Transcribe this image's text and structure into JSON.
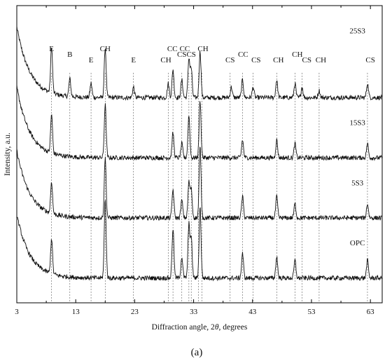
{
  "chart_data": {
    "type": "line",
    "title": "",
    "xlabel_prefix": "Diffraction angle, 2",
    "xlabel_symbol": "θ",
    "xlabel_suffix": ", degrees",
    "ylabel": "Intensity, a.u.",
    "panel_label": "(a)",
    "xlim": [
      3,
      65
    ],
    "x_ticks": [
      3,
      13,
      23,
      33,
      43,
      53,
      63
    ],
    "x_minor_step": 5,
    "grid": false,
    "series": [
      {
        "name": "25S3",
        "baseline": 5.3,
        "rise": 2.0,
        "decay": 2.2,
        "peaks": [
          [
            8.9,
            1.3
          ],
          [
            12.0,
            0.5
          ],
          [
            15.6,
            0.4
          ],
          [
            18.0,
            1.4
          ],
          [
            22.8,
            0.3
          ],
          [
            28.7,
            0.4
          ],
          [
            29.5,
            0.8
          ],
          [
            31.0,
            0.5
          ],
          [
            32.2,
            1.1
          ],
          [
            32.6,
            0.8
          ],
          [
            34.1,
            1.3
          ],
          [
            39.4,
            0.3
          ],
          [
            41.3,
            0.5
          ],
          [
            43.1,
            0.3
          ],
          [
            47.1,
            0.5
          ],
          [
            50.2,
            0.4
          ],
          [
            51.4,
            0.3
          ],
          [
            54.3,
            0.2
          ],
          [
            62.5,
            0.4
          ]
        ]
      },
      {
        "name": "15S3",
        "baseline": 3.6,
        "rise": 2.0,
        "decay": 2.2,
        "peaks": [
          [
            8.9,
            1.1
          ],
          [
            18.0,
            1.5
          ],
          [
            29.5,
            0.7
          ],
          [
            31.0,
            0.4
          ],
          [
            32.2,
            1.2
          ],
          [
            34.1,
            1.6
          ],
          [
            41.3,
            0.5
          ],
          [
            47.1,
            0.5
          ],
          [
            50.2,
            0.4
          ],
          [
            62.5,
            0.4
          ]
        ]
      },
      {
        "name": "5S3",
        "baseline": 1.9,
        "rise": 1.9,
        "decay": 2.2,
        "peaks": [
          [
            8.9,
            0.9
          ],
          [
            18.0,
            1.7
          ],
          [
            29.5,
            0.8
          ],
          [
            31.0,
            0.5
          ],
          [
            32.2,
            1.0
          ],
          [
            32.6,
            0.8
          ],
          [
            34.1,
            2.0
          ],
          [
            41.3,
            0.6
          ],
          [
            47.1,
            0.6
          ],
          [
            50.2,
            0.4
          ],
          [
            62.5,
            0.4
          ]
        ]
      },
      {
        "name": "OPC",
        "baseline": 0.2,
        "rise": 1.8,
        "decay": 2.2,
        "peaks": [
          [
            8.9,
            1.0
          ],
          [
            18.0,
            2.2
          ],
          [
            29.5,
            1.4
          ],
          [
            31.0,
            0.6
          ],
          [
            32.2,
            1.5
          ],
          [
            32.6,
            1.1
          ],
          [
            34.1,
            2.0
          ],
          [
            41.3,
            0.7
          ],
          [
            47.1,
            0.6
          ],
          [
            50.2,
            0.5
          ],
          [
            62.5,
            0.5
          ]
        ]
      }
    ],
    "reference_lines": [
      8.9,
      12.0,
      15.6,
      18.0,
      22.8,
      28.7,
      29.5,
      31.0,
      32.2,
      32.6,
      33.8,
      34.4,
      39.2,
      41.3,
      43.1,
      47.1,
      50.2,
      51.4,
      54.3,
      62.5
    ],
    "peak_labels": [
      {
        "text": "E",
        "x": 8.9,
        "level": 2
      },
      {
        "text": "B",
        "x": 12.0,
        "level": 1
      },
      {
        "text": "E",
        "x": 15.6,
        "level": 0
      },
      {
        "text": "CH",
        "x": 18.0,
        "level": 2
      },
      {
        "text": "E",
        "x": 22.8,
        "level": 0
      },
      {
        "text": "CH",
        "x": 28.3,
        "level": 0
      },
      {
        "text": "CC",
        "x": 29.4,
        "level": 2
      },
      {
        "text": "CS",
        "x": 31.0,
        "level": 1
      },
      {
        "text": "CC",
        "x": 31.5,
        "level": 2
      },
      {
        "text": "CS",
        "x": 32.6,
        "level": 1
      },
      {
        "text": "CH",
        "x": 34.6,
        "level": 2
      },
      {
        "text": "CS",
        "x": 39.2,
        "level": 0
      },
      {
        "text": "CC",
        "x": 41.4,
        "level": 1
      },
      {
        "text": "CS",
        "x": 43.6,
        "level": 0
      },
      {
        "text": "CH",
        "x": 47.4,
        "level": 0
      },
      {
        "text": "CH",
        "x": 50.6,
        "level": 1
      },
      {
        "text": "CS",
        "x": 52.2,
        "level": 0
      },
      {
        "text": "CH",
        "x": 54.6,
        "level": 0
      },
      {
        "text": "CS",
        "x": 63.0,
        "level": 0
      }
    ]
  }
}
